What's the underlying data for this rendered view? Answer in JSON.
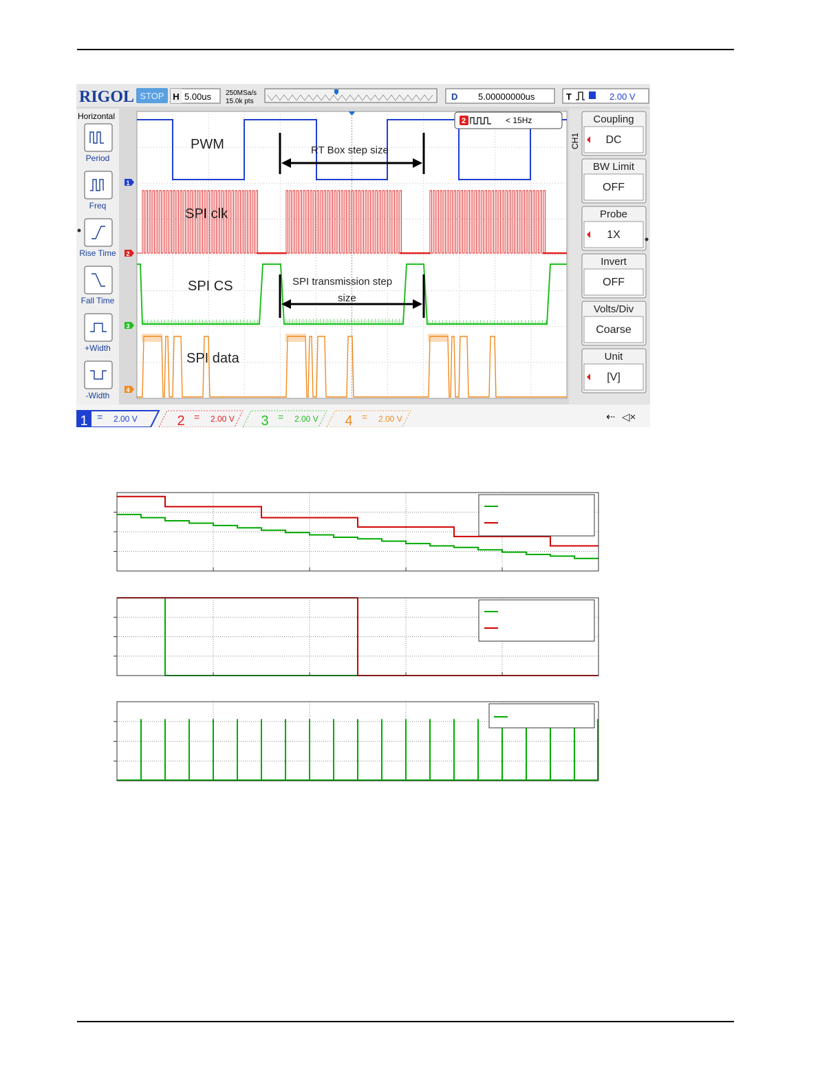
{
  "scope": {
    "brand": "RIGOL",
    "run_state": "STOP",
    "timebase_tag": "H",
    "timebase": "5.00us",
    "sample_rate": "250MSa/s",
    "memory_depth": "15.0k pts",
    "delay_tag": "D",
    "delay": "5.00000000us",
    "trigger_tag": "T",
    "trigger_level": "2.00 V",
    "counter_channel": "2",
    "counter": "< 15Hz",
    "left_menu_title": "Horizontal",
    "left_menu": [
      "Period",
      "Freq",
      "Rise Time",
      "Fall Time",
      "+Width",
      "-Width"
    ],
    "right_menu_channel": "CH1",
    "right_menu": [
      {
        "label": "Coupling",
        "value": "DC"
      },
      {
        "label": "BW Limit",
        "value": "OFF"
      },
      {
        "label": "Probe",
        "value": "1X"
      },
      {
        "label": "Invert",
        "value": "OFF"
      },
      {
        "label": "Volts/Div",
        "value": "Coarse"
      },
      {
        "label": "Unit",
        "value": "[V]"
      }
    ],
    "channels": [
      {
        "num": "1",
        "coupling": "=",
        "scale": "2.00 V",
        "color": "#1f3fd0"
      },
      {
        "num": "2",
        "coupling": "=",
        "scale": "2.00 V",
        "color": "#e02020"
      },
      {
        "num": "3",
        "coupling": "=",
        "scale": "2.00 V",
        "color": "#20c020"
      },
      {
        "num": "4",
        "coupling": "=",
        "scale": "2.00 V",
        "color": "#f08a20"
      }
    ],
    "trace_labels": [
      "PWM",
      "SPI clk",
      "SPI CS",
      "SPI data"
    ],
    "annotations": {
      "rt_box": "RT Box step size",
      "spi_step_line1": "SPI transmission step",
      "spi_step_line2": "size"
    }
  },
  "chart_data": [
    {
      "type": "line",
      "step": true,
      "ylim": [
        0,
        1
      ],
      "series": [
        {
          "color": "#d00000",
          "x": [
            0,
            1,
            3,
            5,
            7,
            9,
            10
          ],
          "y": [
            0.95,
            0.82,
            0.68,
            0.56,
            0.44,
            0.32,
            0.32
          ]
        },
        {
          "color": "#00aa00",
          "x": [
            0,
            0.5,
            1,
            1.5,
            2,
            2.5,
            3,
            3.5,
            4,
            4.5,
            5,
            5.5,
            6,
            6.5,
            7,
            7.5,
            8,
            8.5,
            9,
            9.5,
            10
          ],
          "y": [
            0.72,
            0.68,
            0.64,
            0.61,
            0.58,
            0.55,
            0.52,
            0.49,
            0.46,
            0.43,
            0.41,
            0.38,
            0.35,
            0.32,
            0.3,
            0.27,
            0.24,
            0.21,
            0.19,
            0.16,
            0.16
          ]
        }
      ]
    },
    {
      "type": "line",
      "step": true,
      "ylim": [
        0,
        1
      ],
      "series": [
        {
          "color": "#00aa00",
          "x": [
            0,
            1,
            10
          ],
          "y": [
            1,
            0,
            0
          ]
        },
        {
          "color": "#d00000",
          "x": [
            0,
            5,
            10
          ],
          "y": [
            1,
            0,
            0
          ]
        }
      ]
    },
    {
      "type": "line",
      "impulses": true,
      "ylim": [
        0,
        1
      ],
      "series": [
        {
          "color": "#00aa00",
          "x": [
            0.5,
            1,
            1.5,
            2,
            2.5,
            3,
            3.5,
            4,
            4.5,
            5,
            5.5,
            6,
            6.5,
            7,
            7.5,
            8,
            8.5,
            9,
            9.5,
            10
          ],
          "y": [
            0.78,
            0.78,
            0.78,
            0.78,
            0.78,
            0.78,
            0.78,
            0.78,
            0.78,
            0.78,
            0.78,
            0.78,
            0.78,
            0.78,
            0.78,
            0.78,
            0.78,
            0.78,
            0.78,
            0.78
          ]
        }
      ]
    }
  ]
}
